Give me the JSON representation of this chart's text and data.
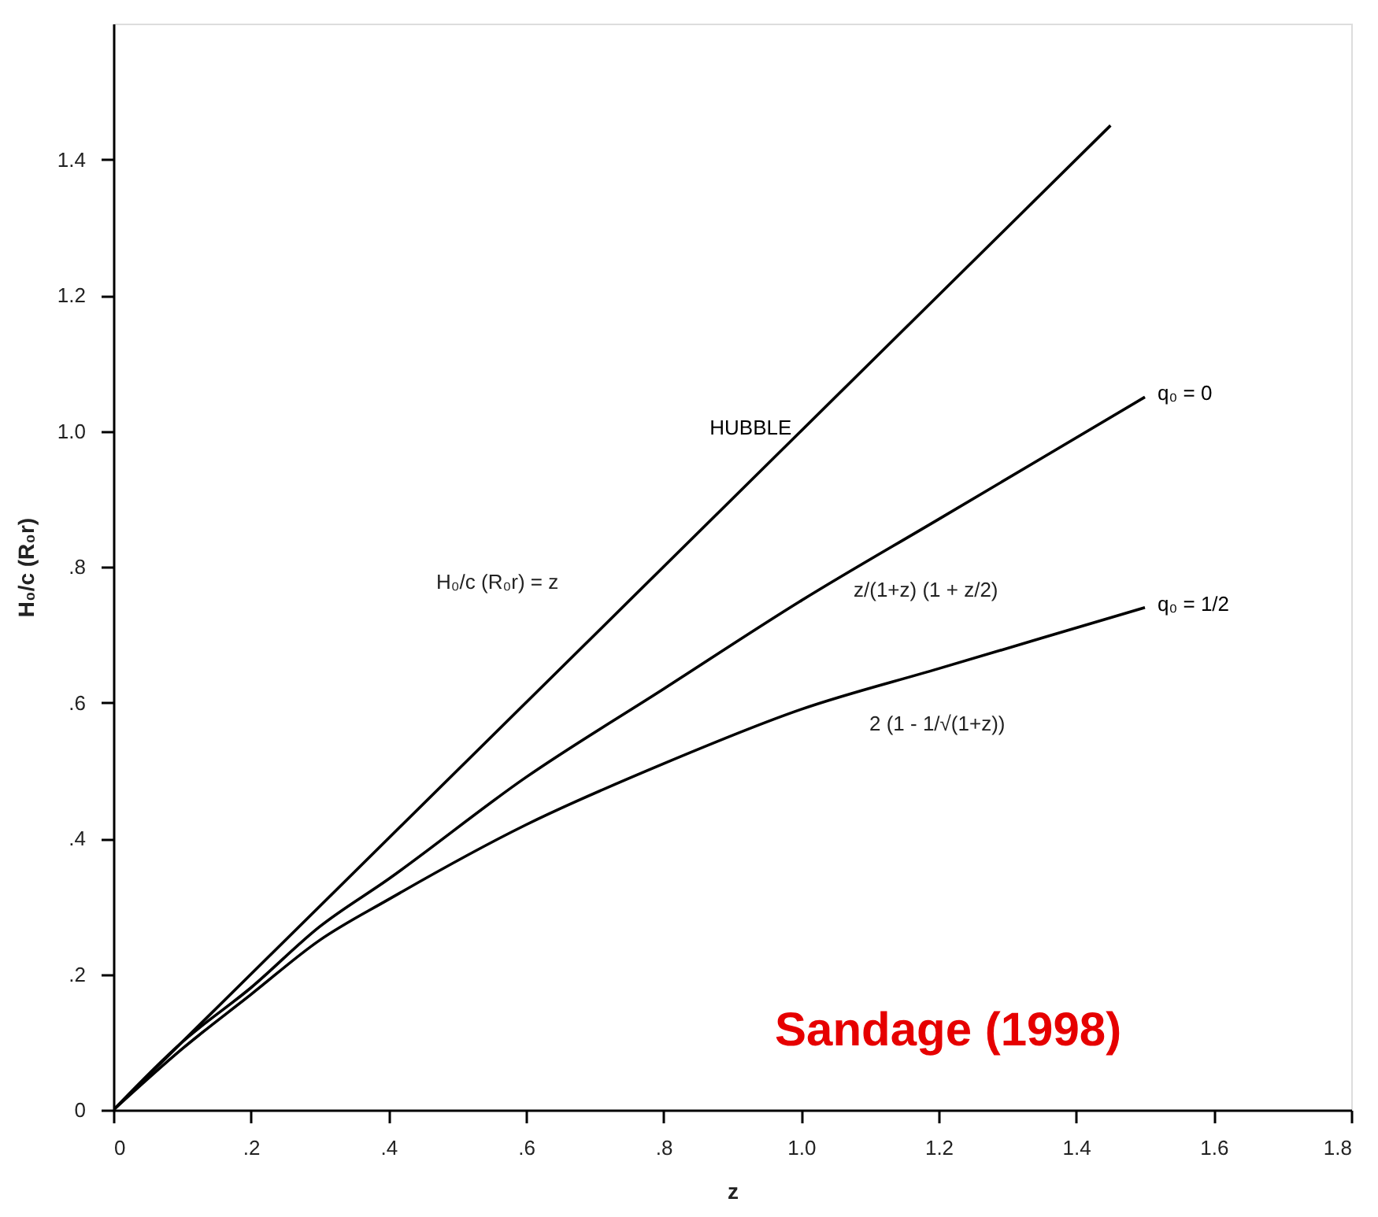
{
  "chart_data": {
    "type": "line",
    "xlabel": "z",
    "ylabel": "H₀/c (R₀r)",
    "series": [
      {
        "name": "HUBBLE",
        "color": "#000000",
        "x": [
          0,
          0.2,
          0.4,
          0.6,
          0.8,
          1.0,
          1.2,
          1.45
        ],
        "values": [
          0,
          0.2,
          0.4,
          0.6,
          0.8,
          1.0,
          1.2,
          1.45
        ]
      },
      {
        "name": "q₀ = 0",
        "color": "#000000",
        "x": [
          0,
          0.1,
          0.2,
          0.3,
          0.4,
          0.6,
          0.8,
          1.0,
          1.2,
          1.5
        ],
        "values": [
          0,
          0.1,
          0.18,
          0.27,
          0.34,
          0.49,
          0.62,
          0.75,
          0.87,
          1.05
        ]
      },
      {
        "name": "q₀ = 1/2",
        "color": "#000000",
        "x": [
          0,
          0.1,
          0.2,
          0.3,
          0.4,
          0.6,
          0.8,
          1.0,
          1.2,
          1.5
        ],
        "values": [
          0,
          0.09,
          0.17,
          0.25,
          0.31,
          0.42,
          0.51,
          0.59,
          0.65,
          0.74
        ]
      }
    ],
    "xlim": [
      0,
      1.8
    ],
    "ylim": [
      0,
      1.6
    ],
    "xticks": [
      0,
      {
        "value": 0.2,
        "label": ".2"
      },
      {
        "value": 0.4,
        "label": ".4"
      },
      {
        "value": 0.6,
        "label": ".6"
      },
      {
        "value": 0.8,
        "label": ".8"
      },
      {
        "value": 1.0,
        "label": "1.0"
      },
      1.2,
      1.4,
      1.6,
      1.8
    ],
    "yticks": [
      0,
      {
        "value": 0.2,
        "label": ".2"
      },
      {
        "value": 0.4,
        "label": ".4"
      },
      {
        "value": 0.6,
        "label": ".6"
      },
      {
        "value": 0.8,
        "label": ".8"
      },
      {
        "value": 1.0,
        "label": "1.0"
      },
      1.2,
      1.4
    ],
    "annotations": [
      "H₀/c (R₀r) = z",
      "z/(1+z) (1 + z/2)",
      "2 (1 - 1/√(1+z))",
      "Sandage (1998)"
    ],
    "grid": false,
    "line_style": "solid",
    "marker": "none"
  }
}
